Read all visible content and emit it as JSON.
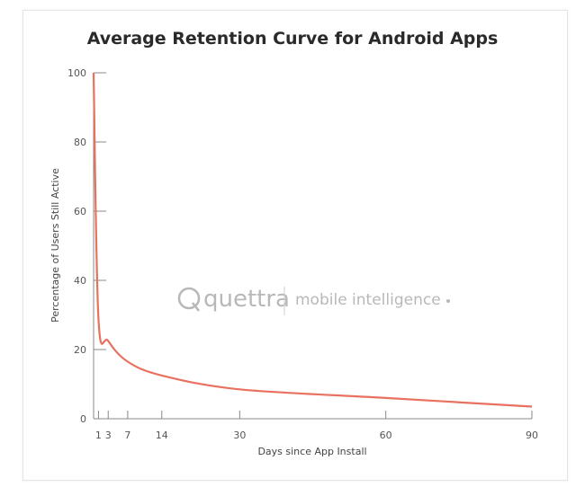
{
  "chart_data": {
    "type": "line",
    "title": "Average Retention Curve for Android Apps",
    "xlabel": "Days since App Install",
    "ylabel": "Percentage of Users Still Active",
    "x_ticks": [
      1,
      3,
      7,
      14,
      30,
      60,
      90
    ],
    "y_ticks": [
      0,
      20,
      40,
      60,
      80,
      100
    ],
    "xlim": [
      0,
      90
    ],
    "ylim": [
      0,
      100
    ],
    "grid": false,
    "series": [
      {
        "color": "#e8715f",
        "x": [
          0,
          1,
          3,
          7,
          14,
          30,
          60,
          90
        ],
        "y": [
          100,
          29,
          22.5,
          16.5,
          12.5,
          8.5,
          6,
          3.5
        ]
      }
    ]
  },
  "watermark": {
    "brand": "quettra",
    "tagline": "mobile intelligence"
  }
}
